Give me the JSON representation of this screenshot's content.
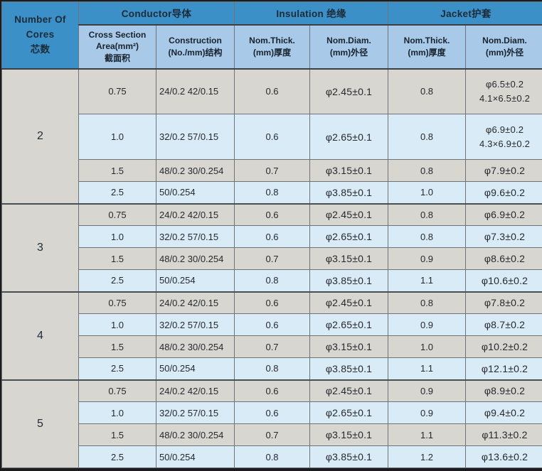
{
  "table": {
    "header": {
      "cores_label": "Number Of\nCores\n芯数",
      "groups": [
        "Conductor导体",
        "Insulation 绝缘",
        "Jacket护套"
      ],
      "subheaders": [
        "Cross Section\nArea(mm²)\n截面积",
        "Construction\n(No./mm)结构",
        "Nom.Thick.\n(mm)厚度",
        "Nom.Diam.\n(mm)外径",
        "Nom.Thick.\n(mm)厚度",
        "Nom.Diam.\n(mm)外径"
      ]
    },
    "sections": [
      {
        "cores": "2",
        "rows": [
          [
            "0.75",
            "24/0.2 42/0.15",
            "0.6",
            "φ2.45±0.1",
            "0.8",
            "φ6.5±0.2\n4.1×6.5±0.2"
          ],
          [
            "1.0",
            "32/0.2 57/0.15",
            "0.6",
            "φ2.65±0.1",
            "0.8",
            "φ6.9±0.2\n4.3×6.9±0.2"
          ],
          [
            "1.5",
            "48/0.2 30/0.254",
            "0.7",
            "φ3.15±0.1",
            "0.8",
            "φ7.9±0.2"
          ],
          [
            "2.5",
            "50/0.254",
            "0.8",
            "φ3.85±0.1",
            "1.0",
            "φ9.6±0.2"
          ]
        ]
      },
      {
        "cores": "3",
        "rows": [
          [
            "0.75",
            "24/0.2 42/0.15",
            "0.6",
            "φ2.45±0.1",
            "0.8",
            "φ6.9±0.2"
          ],
          [
            "1.0",
            "32/0.2 57/0.15",
            "0.6",
            "φ2.65±0.1",
            "0.8",
            "φ7.3±0.2"
          ],
          [
            "1.5",
            "48/0.2 30/0.254",
            "0.7",
            "φ3.15±0.1",
            "0.9",
            "φ8.6±0.2"
          ],
          [
            "2.5",
            "50/0.254",
            "0.8",
            "φ3.85±0.1",
            "1.1",
            "φ10.6±0.2"
          ]
        ]
      },
      {
        "cores": "4",
        "rows": [
          [
            "0.75",
            "24/0.2 42/0.15",
            "0.6",
            "φ2.45±0.1",
            "0.8",
            "φ7.8±0.2"
          ],
          [
            "1.0",
            "32/0.2 57/0.15",
            "0.6",
            "φ2.65±0.1",
            "0.9",
            "φ8.7±0.2"
          ],
          [
            "1.5",
            "48/0.2 30/0.254",
            "0.7",
            "φ3.15±0.1",
            "1.0",
            "φ10.2±0.2"
          ],
          [
            "2.5",
            "50/0.254",
            "0.8",
            "φ3.85±0.1",
            "1.1",
            "φ12.1±0.2"
          ]
        ]
      },
      {
        "cores": "5",
        "rows": [
          [
            "0.75",
            "24/0.2 42/0.15",
            "0.6",
            "φ2.45±0.1",
            "0.9",
            "φ8.9±0.2"
          ],
          [
            "1.0",
            "32/0.2 57/0.15",
            "0.6",
            "φ2.65±0.1",
            "0.9",
            "φ9.4±0.2"
          ],
          [
            "1.5",
            "48/0.2 30/0.254",
            "0.7",
            "φ3.15±0.1",
            "1.1",
            "φ11.3±0.2"
          ],
          [
            "2.5",
            "50/0.254",
            "0.8",
            "φ3.85±0.1",
            "1.2",
            "φ13.6±0.2"
          ]
        ]
      }
    ]
  },
  "colors": {
    "header_blue": "#3C90C8",
    "subheader_blue": "#A9C9E8",
    "cores_column_blue": "#97BCE0",
    "row_gray": "#D8D6D1",
    "row_blue": "#DAEBF8",
    "grid_line": "#6F7478",
    "outer_border": "#1C1C1C"
  }
}
